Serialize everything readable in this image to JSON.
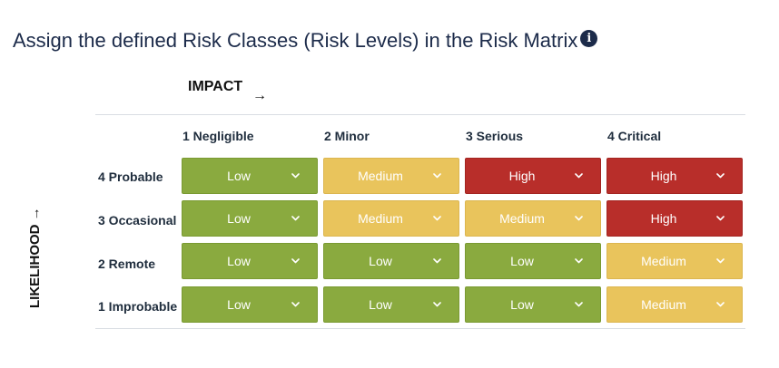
{
  "title": "Assign the defined Risk Classes (Risk Levels) in the Risk Matrix",
  "info_icon": "i",
  "impact_label": "IMPACT",
  "impact_arrow": "→",
  "likelihood_label": "LIKELIHOOD",
  "likelihood_arrow": "→",
  "columns": [
    "1 Negligible",
    "2 Minor",
    "3 Serious",
    "4 Critical"
  ],
  "rows": [
    "4 Probable",
    "3 Occasional",
    "2 Remote",
    "1 Improbable"
  ],
  "chevron": "⌄",
  "colors": {
    "low": "#8aaa3f",
    "medium": "#e9c45c",
    "high": "#b82e2a",
    "title": "#1c2b4a"
  },
  "matrix": [
    [
      "Low",
      "Medium",
      "High",
      "High"
    ],
    [
      "Low",
      "Medium",
      "Medium",
      "High"
    ],
    [
      "Low",
      "Low",
      "Low",
      "Medium"
    ],
    [
      "Low",
      "Low",
      "Low",
      "Medium"
    ]
  ]
}
